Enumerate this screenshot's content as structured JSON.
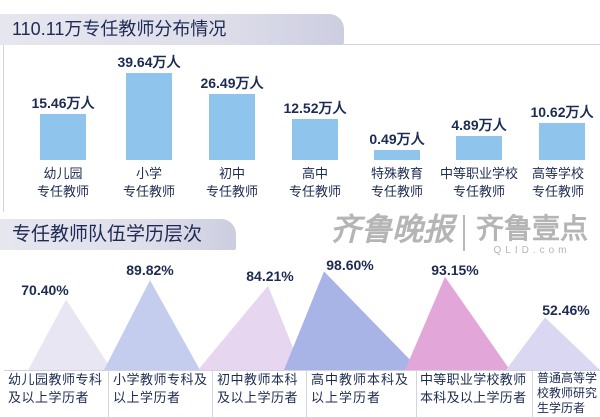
{
  "chart_data": [
    {
      "type": "bar",
      "title": "110.11万专任教师分布情况",
      "categories": [
        "幼儿园\n专任教师",
        "小学\n专任教师",
        "初中\n专任教师",
        "高中\n专任教师",
        "特殊教育\n专任教师",
        "中等职业学校\n专任教师",
        "高等学校\n专任教师"
      ],
      "values": [
        15.46,
        39.64,
        26.49,
        12.52,
        0.49,
        4.89,
        10.62
      ],
      "data_labels": [
        "15.46万人",
        "39.64万人",
        "26.49万人",
        "12.52万人",
        "0.49万人",
        "4.89万人",
        "10.62万人"
      ],
      "bar_color": "#8fc4ec",
      "grid": false
    },
    {
      "type": "bar",
      "title": "专任教师队伍学历层次",
      "categories": [
        "幼儿园教师专科\n及以上学历者",
        "小学教师专科及\n以上学历者",
        "初中教师本科\n及以上学历者",
        "高中教师本科及\n以上学历者",
        "中等职业学校教师\n本科及以上学历者",
        "普通高等学\n校教师研究\n生学历者"
      ],
      "values": [
        70.4,
        89.82,
        84.21,
        98.6,
        93.15,
        52.46
      ],
      "data_labels": [
        "70.40%",
        "89.82%",
        "84.21%",
        "98.60%",
        "93.15%",
        "52.46%"
      ],
      "colors": [
        "#e9e6f3",
        "#c5cdef",
        "#e6d6ef",
        "#a8b4e6",
        "#e2a6d8",
        "#d9d7f1"
      ],
      "grid": false
    }
  ],
  "watermark": {
    "newspaper": "齐鲁晚报",
    "app": "齐鲁壹点",
    "site": "QLID.com"
  },
  "colors": {
    "text": "#1d2b52",
    "header_band": "#dfdfea"
  }
}
